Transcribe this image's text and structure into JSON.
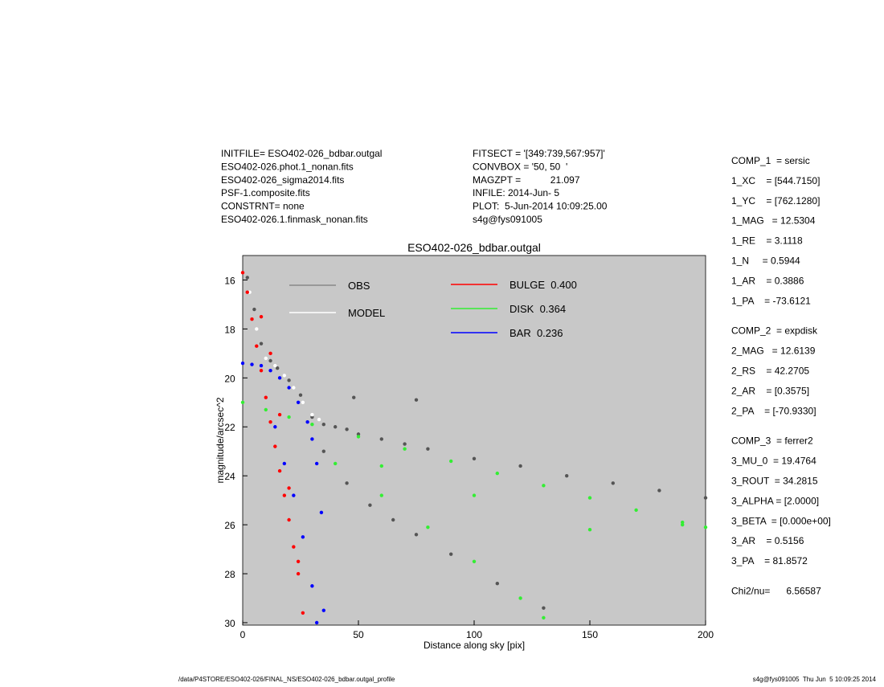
{
  "info_left": [
    "INITFILE= ESO402-026_bdbar.outgal",
    "ESO402-026.phot.1_nonan.fits",
    "ESO402-026_sigma2014.fits",
    "PSF-1.composite.fits",
    "CONSTRNT= none",
    "ESO402-026.1.finmask_nonan.fits"
  ],
  "info_mid": [
    "FITSECT = '[349:739,567:957]'",
    "CONVBOX = '50, 50  '",
    "MAGZPT =           21.097",
    "INFILE: 2014-Jun- 5",
    "PLOT:  5-Jun-2014 10:09:25.00",
    "s4g@fys091005"
  ],
  "params": [
    [
      "COMP_1  = sersic",
      "1_XC    = [544.7150]",
      "1_YC    = [762.1280]",
      "1_MAG   = 12.5304",
      "1_RE    = 3.1118",
      "1_N     = 0.5944",
      "1_AR    = 0.3886",
      "1_PA    = -73.6121"
    ],
    [
      "COMP_2  = expdisk",
      "2_MAG   = 12.6139",
      "2_RS    = 42.2705",
      "2_AR    = [0.3575]",
      "2_PA    = [-70.9330]"
    ],
    [
      "COMP_3  = ferrer2",
      "3_MU_0  = 19.4764",
      "3_ROUT  = 34.2815",
      "3_ALPHA = [2.0000]",
      "3_BETA  = [0.000e+00]",
      "3_AR    = 0.5156",
      "3_PA    = 81.8572"
    ],
    [
      "Chi2/nu=      6.56587"
    ]
  ],
  "footer_left": "/data/P4STORE/ESO402-026/FINAL_NS/ESO402-026_bdbar.outgal_profile",
  "footer_right": "s4g@fys091005  Thu Jun  5 10:09:25 2014",
  "chart_data": {
    "type": "scatter",
    "title": "ESO402-026_bdbar.outgal",
    "x_label": "Distance along sky [pix]",
    "y_label": "magnitude/arcsec^2",
    "xlim": [
      0,
      200
    ],
    "xticks": [
      0,
      50,
      100,
      150,
      200
    ],
    "ylim": [
      30.1,
      15.0
    ],
    "yticks": [
      16,
      18,
      20,
      22,
      24,
      26,
      28,
      30
    ],
    "background": "#c8c8c8",
    "series": [
      {
        "name": "OBS",
        "color": "#555555",
        "legend_color": "#888888",
        "x": [
          2,
          5,
          8,
          12,
          15,
          20,
          25,
          30,
          35,
          40,
          45,
          50,
          60,
          70,
          80,
          100,
          120,
          140,
          160,
          180,
          200,
          35,
          45,
          55,
          65,
          75,
          90,
          110,
          130,
          48,
          75
        ],
        "values": [
          15.9,
          17.2,
          18.6,
          19.3,
          19.6,
          20.1,
          20.7,
          21.6,
          21.9,
          22.0,
          22.1,
          22.3,
          22.5,
          22.7,
          22.9,
          23.3,
          23.6,
          24.0,
          24.3,
          24.6,
          24.9,
          23.0,
          24.3,
          25.2,
          25.8,
          26.4,
          27.2,
          28.4,
          29.4,
          20.8,
          20.9
        ]
      },
      {
        "name": "MODEL",
        "color": "#ffffff",
        "legend_color": "#ffffff",
        "x": [
          3,
          6,
          10,
          14,
          18,
          22,
          26,
          30,
          33
        ],
        "values": [
          16.5,
          18.0,
          19.2,
          19.5,
          19.9,
          20.4,
          21.0,
          21.5,
          21.7
        ]
      },
      {
        "name": "BULGE  0.400",
        "color": "#ff0000",
        "legend_color": "#ff0000",
        "x": [
          0,
          2,
          4,
          6,
          8,
          10,
          12,
          14,
          16,
          18,
          20,
          22,
          24,
          26,
          8,
          12,
          16,
          20,
          24
        ],
        "values": [
          15.7,
          16.5,
          17.6,
          18.7,
          19.7,
          20.8,
          21.8,
          22.8,
          23.8,
          24.8,
          25.8,
          26.9,
          28.0,
          29.6,
          17.5,
          19.0,
          21.5,
          24.5,
          27.5
        ]
      },
      {
        "name": "DISK  0.364",
        "color": "#33ee33",
        "legend_color": "#33ee33",
        "x": [
          0,
          10,
          20,
          30,
          50,
          70,
          90,
          110,
          130,
          150,
          170,
          190,
          200,
          40,
          60,
          80,
          100,
          120,
          130,
          60,
          100,
          150,
          190
        ],
        "values": [
          21.0,
          21.3,
          21.6,
          21.9,
          22.4,
          22.9,
          23.4,
          23.9,
          24.4,
          24.9,
          25.4,
          25.9,
          26.1,
          23.5,
          24.8,
          26.1,
          27.5,
          29.0,
          29.8,
          23.6,
          24.8,
          26.2,
          26.0
        ]
      },
      {
        "name": "BAR  0.236",
        "color": "#0000ff",
        "legend_color": "#0000ff",
        "x": [
          0,
          4,
          8,
          12,
          16,
          20,
          24,
          28,
          30,
          32,
          34,
          35,
          14,
          18,
          22,
          26,
          30,
          32
        ],
        "values": [
          19.4,
          19.45,
          19.5,
          19.7,
          20.0,
          20.4,
          21.0,
          21.8,
          22.5,
          23.5,
          25.5,
          29.5,
          22.0,
          23.5,
          24.8,
          26.5,
          28.5,
          30.0
        ]
      }
    ]
  }
}
